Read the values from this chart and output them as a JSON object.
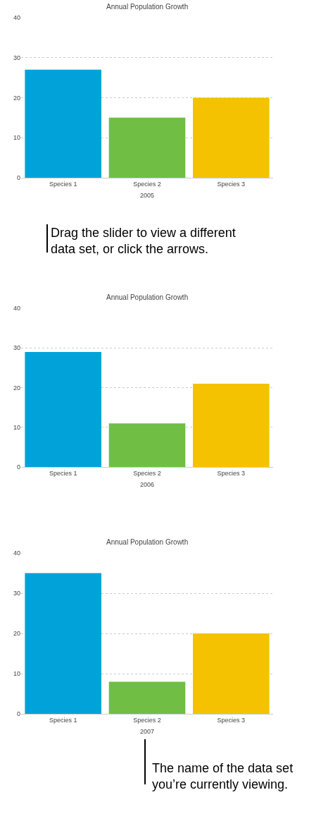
{
  "chart_data": [
    {
      "type": "bar",
      "title": "Annual Population Growth",
      "xlabel": "2005",
      "categories": [
        "Species 1",
        "Species 2",
        "Species 3"
      ],
      "values": [
        27,
        15,
        20
      ],
      "colors": [
        "#00a3d9",
        "#70bf44",
        "#f5c200"
      ],
      "ylim": [
        0,
        40
      ],
      "yticks": [
        0,
        10,
        20,
        30,
        40
      ],
      "grid": "y",
      "annotations": [
        "Drag the slider to view a different data set, or click the arrows."
      ]
    },
    {
      "type": "bar",
      "title": "Annual Population Growth",
      "xlabel": "2006",
      "categories": [
        "Species 1",
        "Species 2",
        "Species 3"
      ],
      "values": [
        29,
        11,
        21
      ],
      "colors": [
        "#00a3d9",
        "#70bf44",
        "#f5c200"
      ],
      "ylim": [
        0,
        40
      ],
      "yticks": [
        0,
        10,
        20,
        30,
        40
      ],
      "grid": "y"
    },
    {
      "type": "bar",
      "title": "Annual Population Growth",
      "xlabel": "2007",
      "categories": [
        "Species 1",
        "Species 2",
        "Species 3"
      ],
      "values": [
        35,
        8,
        20
      ],
      "colors": [
        "#00a3d9",
        "#70bf44",
        "#f5c200"
      ],
      "ylim": [
        0,
        40
      ],
      "yticks": [
        0,
        10,
        20,
        30,
        40
      ],
      "grid": "y",
      "annotations": [
        "The name of the data set you’re currently viewing."
      ]
    }
  ]
}
